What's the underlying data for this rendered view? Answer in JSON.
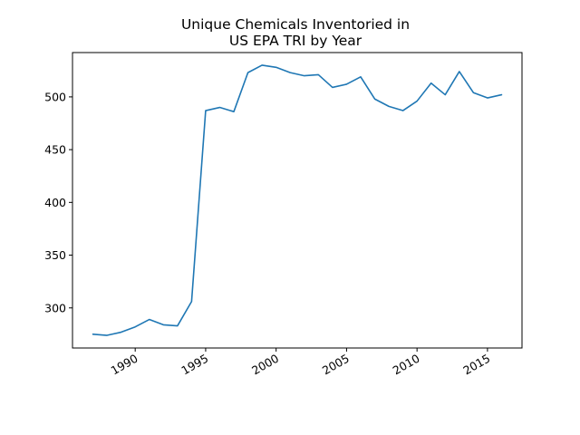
{
  "chart_data": {
    "type": "line",
    "title_lines": [
      "Unique Chemicals Inventoried in",
      "US EPA TRI by Year"
    ],
    "xlabel": "",
    "ylabel": "",
    "xlim": [
      1985.55,
      2017.45
    ],
    "ylim": [
      262,
      542
    ],
    "x_ticks": [
      1990,
      1995,
      2000,
      2005,
      2010,
      2015
    ],
    "y_ticks": [
      300,
      350,
      400,
      450,
      500
    ],
    "x_tick_rotation": -30,
    "grid": false,
    "legend": "none",
    "series": [
      {
        "color": "#1f77b4",
        "x": [
          1987,
          1988,
          1989,
          1990,
          1991,
          1992,
          1993,
          1994,
          1995,
          1996,
          1997,
          1998,
          1999,
          2000,
          2001,
          2002,
          2003,
          2004,
          2005,
          2006,
          2007,
          2008,
          2009,
          2010,
          2011,
          2012,
          2013,
          2014,
          2015,
          2016
        ],
        "y": [
          275,
          274,
          277,
          282,
          289,
          284,
          283,
          306,
          487,
          490,
          486,
          523,
          530,
          528,
          523,
          520,
          521,
          509,
          512,
          519,
          498,
          491,
          487,
          496,
          513,
          502,
          524,
          504,
          499,
          502
        ]
      }
    ]
  }
}
